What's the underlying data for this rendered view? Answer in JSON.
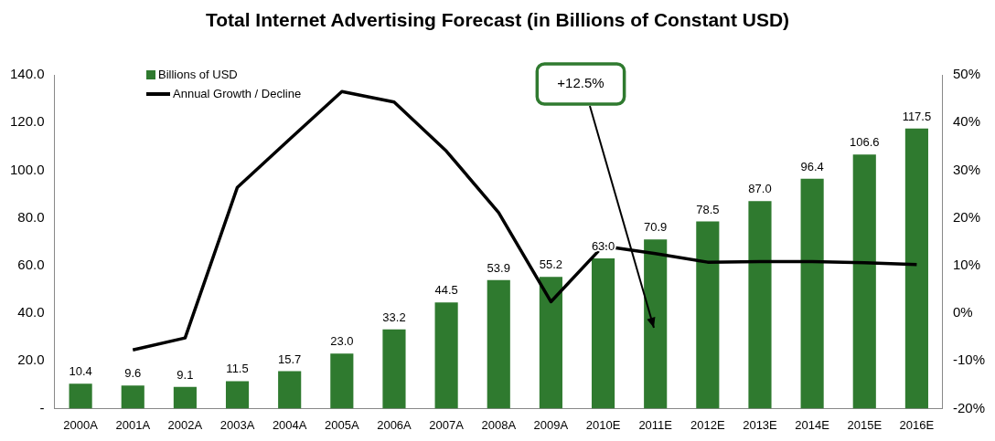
{
  "chart_data": {
    "type": "bar",
    "title": "Total Internet Advertising Forecast (in Billions of Constant USD)",
    "categories": [
      "2000A",
      "2001A",
      "2002A",
      "2003A",
      "2004A",
      "2005A",
      "2006A",
      "2007A",
      "2008A",
      "2009A",
      "2010E",
      "2011E",
      "2012E",
      "2013E",
      "2014E",
      "2015E",
      "2016E"
    ],
    "series": [
      {
        "name": "Billions of USD",
        "color": "#2f7a2f",
        "values": [
          10.4,
          9.6,
          9.1,
          11.5,
          15.7,
          23.0,
          33.2,
          44.5,
          53.9,
          55.2,
          63.0,
          70.9,
          78.5,
          87.0,
          96.4,
          106.6,
          117.5
        ],
        "value_labels": [
          "10.4",
          "9.6",
          "9.1",
          "11.5",
          "15.7",
          "23.0",
          "33.2",
          "44.5",
          "53.9",
          "55.2",
          "63.0",
          "70.9",
          "78.5",
          "87.0",
          "96.4",
          "106.6",
          "117.5"
        ]
      },
      {
        "name": "Annual Growth / Decline",
        "type": "line",
        "axis": "y2",
        "color": "#000000",
        "values": [
          null,
          -7.7,
          -5.2,
          26.4,
          36.5,
          46.5,
          44.3,
          34.0,
          21.1,
          2.4,
          14.1,
          12.5,
          10.7,
          10.8,
          10.8,
          10.6,
          10.2
        ]
      }
    ],
    "ylim": [
      0,
      140
    ],
    "yticks": [
      {
        "value": 0,
        "label": "-"
      },
      {
        "value": 20,
        "label": "20.0"
      },
      {
        "value": 40,
        "label": "40.0"
      },
      {
        "value": 60,
        "label": "60.0"
      },
      {
        "value": 80,
        "label": "80.0"
      },
      {
        "value": 100,
        "label": "100.0"
      },
      {
        "value": 120,
        "label": "120.0"
      },
      {
        "value": 140,
        "label": "140.0"
      }
    ],
    "y2lim": [
      -20,
      50
    ],
    "y2ticks": [
      {
        "value": -20,
        "label": "-20%"
      },
      {
        "value": -10,
        "label": "-10%"
      },
      {
        "value": 0,
        "label": "0%"
      },
      {
        "value": 10,
        "label": "10%"
      },
      {
        "value": 20,
        "label": "20%"
      },
      {
        "value": 30,
        "label": "30%"
      },
      {
        "value": 40,
        "label": "40%"
      },
      {
        "value": 50,
        "label": "50%"
      }
    ],
    "annotations": [
      "+12.5%"
    ],
    "grid": false,
    "legend": "top left",
    "marker": "none",
    "line_style": "solid"
  }
}
